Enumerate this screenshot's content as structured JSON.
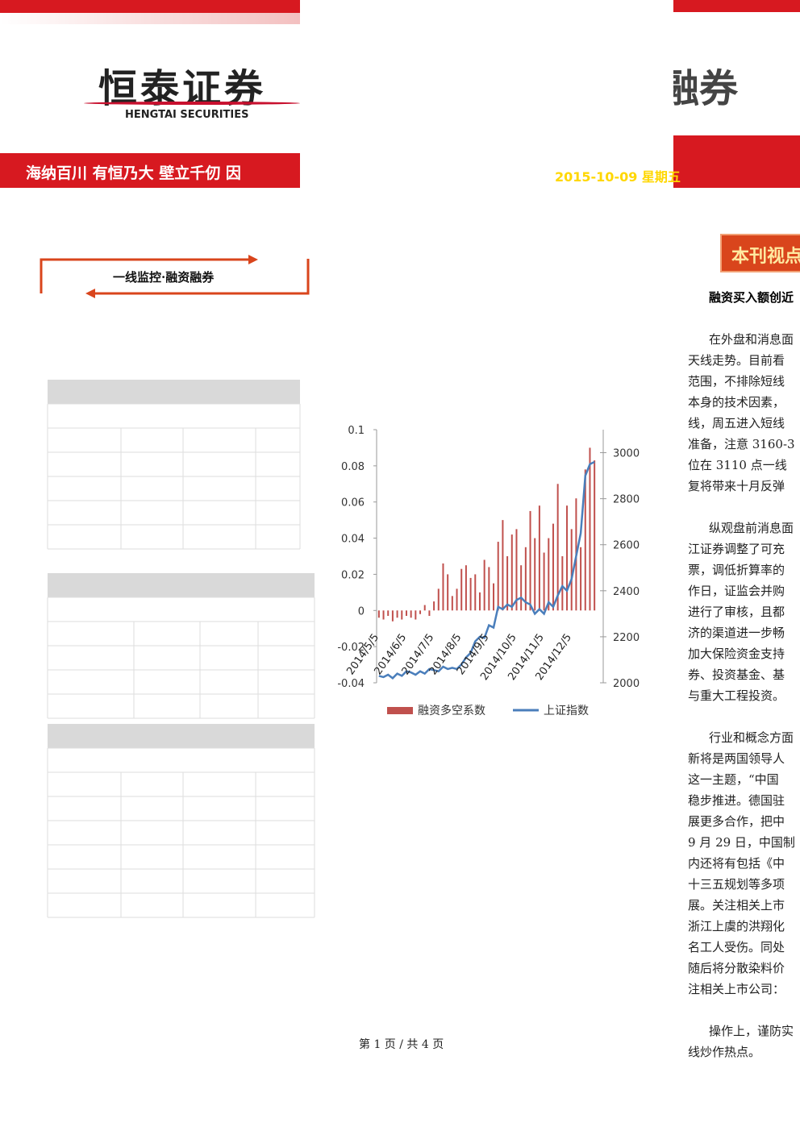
{
  "header": {
    "logo": "恒泰证券",
    "logo_en": "HENGTAI SECURITIES",
    "right_title": "融券",
    "slogan": "海纳百川 有恒乃大 壁立千仞 因",
    "date": "2015-10-09 星期五"
  },
  "section": {
    "title": "一线监控·融资融券"
  },
  "chart": {
    "type": "bar-line",
    "categories": [
      "2014/5/5",
      null,
      null,
      null,
      null,
      null,
      "2014/6/5",
      null,
      null,
      null,
      null,
      null,
      "2014/7/5",
      null,
      null,
      null,
      null,
      null,
      "2014/8/5",
      null,
      null,
      null,
      null,
      null,
      "2014/9/5",
      null,
      null,
      null,
      null,
      null,
      "2014/10/5",
      null,
      null,
      null,
      null,
      null,
      "2014/11/5",
      null,
      null,
      null,
      null,
      null,
      "2014/12/5",
      null,
      null,
      null,
      null,
      null
    ],
    "series": [
      {
        "name": "融资多空系数",
        "color": "#c0504d",
        "values": [
          -0.004,
          -0.005,
          -0.003,
          -0.006,
          -0.004,
          -0.005,
          -0.003,
          -0.004,
          -0.005,
          -0.002,
          0.003,
          -0.003,
          0.005,
          0.012,
          0.026,
          0.02,
          0.008,
          0.012,
          0.023,
          0.025,
          0.018,
          0.02,
          0.01,
          0.028,
          0.024,
          0.015,
          0.038,
          0.05,
          0.03,
          0.042,
          0.045,
          0.025,
          0.035,
          0.055,
          0.04,
          0.058,
          0.032,
          0.04,
          0.048,
          0.07,
          0.03,
          0.058,
          0.045,
          0.062,
          0.035,
          0.078,
          0.09,
          0.083
        ]
      },
      {
        "name": "上证指数",
        "color": "#4a7ebb",
        "axis": "y2",
        "values": [
          2030,
          2025,
          2035,
          2020,
          2040,
          2030,
          2050,
          2045,
          2035,
          2050,
          2040,
          2060,
          2055,
          2050,
          2070,
          2060,
          2065,
          2060,
          2080,
          2110,
          2130,
          2180,
          2200,
          2195,
          2250,
          2240,
          2330,
          2320,
          2340,
          2330,
          2360,
          2370,
          2350,
          2340,
          2300,
          2320,
          2300,
          2350,
          2330,
          2380,
          2420,
          2400,
          2450,
          2550,
          2650,
          2900,
          2950,
          2960
        ]
      }
    ],
    "ylim": [
      -0.04,
      0.1
    ],
    "yticks": [
      -0.04,
      -0.02,
      0,
      0.02,
      0.04,
      0.06,
      0.08,
      0.1
    ],
    "y2lim": [
      2000,
      3100
    ],
    "y2ticks": [
      2000,
      2200,
      2400,
      2600,
      2800,
      3000
    ]
  },
  "article": {
    "heading": "本刊视点",
    "subtitle": "融资买入额创近",
    "paragraphs": [
      [
        "在外盘和消息面",
        "天线走势。目前看",
        "范围，不排除短线",
        "本身的技术因素，",
        "线，周五进入短线",
        "准备，注意 3160-3",
        "位在 3110 点一线",
        "复将带来十月反弹"
      ],
      [
        "纵观盘前消息面",
        "江证券调整了可充",
        "票，调低折算率的",
        "作日，证监会并购",
        "进行了审核，且都",
        "济的渠道进一步畅",
        "加大保险资金支持",
        "券、投资基金、基",
        "与重大工程投资。"
      ],
      [
        "行业和概念方面",
        "新将是两国领导人",
        "这一主题，“中国",
        "稳步推进。德国驻",
        "展更多合作，把中",
        "9 月 29 日，中国制",
        "内还将有包括《中",
        "十三五规划等多项",
        "展。关注相关上市",
        "浙江上虞的洪翔化",
        "名工人受伤。同处",
        "随后将分散染料价",
        "注相关上市公司："
      ],
      [
        "操作上，谨防实",
        "线炒作热点。"
      ]
    ]
  },
  "footer": {
    "page": "第 1 页 / 共 4 页"
  }
}
